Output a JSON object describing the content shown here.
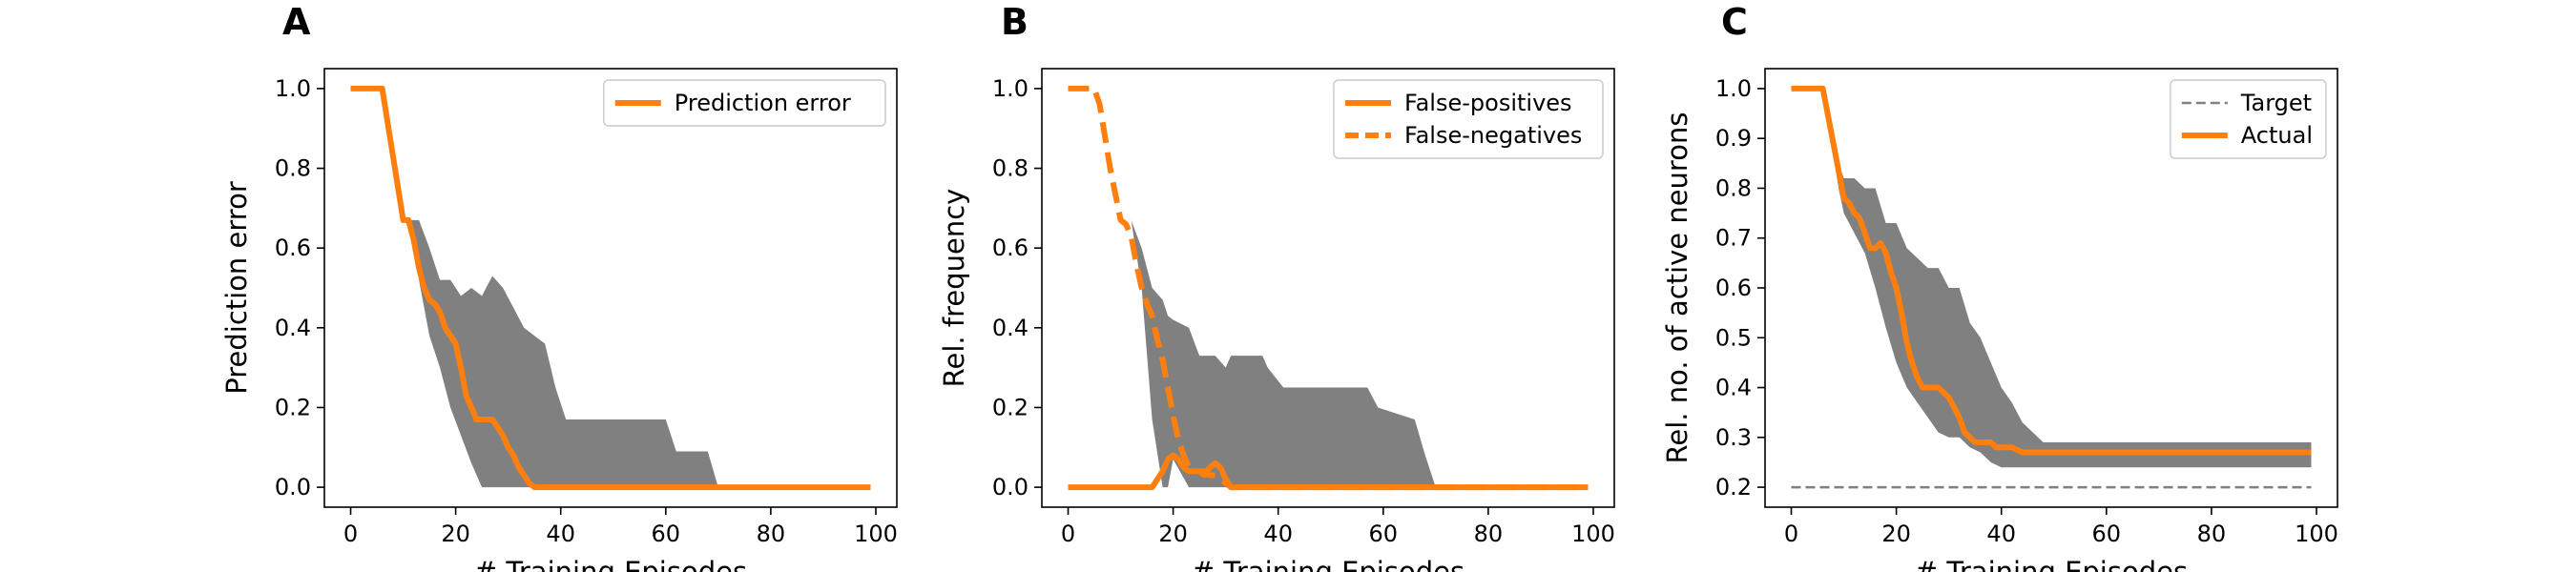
{
  "chart_data": [
    {
      "panel": "A",
      "type": "line",
      "xlabel": "# Training Episodes",
      "ylabel": "Prediction error",
      "xlim": [
        -5,
        104
      ],
      "ylim": [
        -0.05,
        1.05
      ],
      "xticks": [
        0,
        20,
        40,
        60,
        80,
        100
      ],
      "xtick_labels": [
        "0",
        "20",
        "40",
        "60",
        "80",
        "100"
      ],
      "yticks": [
        0.0,
        0.2,
        0.4,
        0.6,
        0.8,
        1.0
      ],
      "ytick_labels": [
        "0.0",
        "0.2",
        "0.4",
        "0.6",
        "0.8",
        "1.0"
      ],
      "grid": false,
      "legend_position": "top-right",
      "band": {
        "x": [
          0,
          6,
          10,
          11,
          13,
          15,
          17,
          19,
          21,
          23,
          25,
          27,
          29,
          31,
          33,
          35,
          37,
          39,
          41,
          43,
          60,
          62,
          66,
          68,
          70,
          99
        ],
        "lower": [
          1.0,
          1.0,
          0.67,
          0.67,
          0.52,
          0.38,
          0.3,
          0.2,
          0.13,
          0.06,
          0.0,
          0.0,
          0.0,
          0.0,
          0.0,
          0.0,
          0.0,
          0.0,
          0.0,
          0.0,
          0.0,
          0.0,
          0.0,
          0.0,
          0.0,
          0.0
        ],
        "upper": [
          1.0,
          1.0,
          0.67,
          0.67,
          0.67,
          0.6,
          0.52,
          0.52,
          0.48,
          0.5,
          0.48,
          0.53,
          0.5,
          0.45,
          0.4,
          0.38,
          0.36,
          0.25,
          0.17,
          0.17,
          0.17,
          0.09,
          0.09,
          0.09,
          0.0,
          0.0
        ]
      },
      "series": [
        {
          "name": "Prediction error",
          "style": "solid",
          "x": [
            0,
            6,
            10,
            11,
            12,
            13,
            14,
            15,
            16,
            17,
            18,
            19,
            20,
            21,
            22,
            23,
            24,
            25,
            26,
            27,
            28,
            29,
            30,
            31,
            32,
            33,
            34,
            35,
            36,
            40,
            60,
            80,
            99
          ],
          "y": [
            1.0,
            1.0,
            0.67,
            0.67,
            0.62,
            0.55,
            0.5,
            0.47,
            0.46,
            0.44,
            0.4,
            0.38,
            0.36,
            0.3,
            0.23,
            0.2,
            0.17,
            0.17,
            0.17,
            0.17,
            0.15,
            0.13,
            0.1,
            0.08,
            0.05,
            0.03,
            0.01,
            0.0,
            0.0,
            0.0,
            0.0,
            0.0,
            0.0
          ]
        }
      ]
    },
    {
      "panel": "B",
      "type": "line",
      "xlabel": "# Training Episodes",
      "ylabel": "Rel. frequency",
      "xlim": [
        -5,
        104
      ],
      "ylim": [
        -0.05,
        1.05
      ],
      "xticks": [
        0,
        20,
        40,
        60,
        80,
        100
      ],
      "xtick_labels": [
        "0",
        "20",
        "40",
        "60",
        "80",
        "100"
      ],
      "yticks": [
        0.0,
        0.2,
        0.4,
        0.6,
        0.8,
        1.0
      ],
      "ytick_labels": [
        "0.0",
        "0.2",
        "0.4",
        "0.6",
        "0.8",
        "1.0"
      ],
      "grid": false,
      "legend_position": "top-right",
      "band": {
        "x": [
          10,
          12,
          14,
          16,
          18,
          19,
          20,
          23,
          25,
          28,
          30,
          31,
          35,
          37,
          38,
          41,
          43,
          57,
          59,
          66,
          68,
          70,
          99
        ],
        "lower": [
          0.67,
          0.67,
          0.5,
          0.17,
          0.0,
          0.0,
          0.07,
          0.0,
          0.0,
          0.0,
          0.0,
          0.0,
          0.0,
          0.0,
          0.0,
          0.0,
          0.0,
          0.0,
          0.0,
          0.0,
          0.0,
          0.0,
          0.0
        ],
        "upper": [
          0.67,
          0.67,
          0.6,
          0.5,
          0.47,
          0.43,
          0.42,
          0.4,
          0.33,
          0.33,
          0.3,
          0.33,
          0.33,
          0.33,
          0.3,
          0.25,
          0.25,
          0.25,
          0.2,
          0.17,
          0.08,
          0.0,
          0.0
        ]
      },
      "series": [
        {
          "name": "False-positives",
          "style": "solid",
          "x": [
            0,
            16,
            17,
            18,
            19,
            20,
            21,
            22,
            23,
            24,
            25,
            26,
            27,
            28,
            29,
            30,
            31,
            40,
            60,
            80,
            99
          ],
          "y": [
            0.0,
            0.0,
            0.02,
            0.04,
            0.07,
            0.08,
            0.07,
            0.05,
            0.04,
            0.04,
            0.04,
            0.03,
            0.05,
            0.06,
            0.05,
            0.02,
            0.0,
            0.0,
            0.0,
            0.0,
            0.0
          ]
        },
        {
          "name": "False-negatives",
          "style": "dashed",
          "x": [
            0,
            5,
            6,
            8,
            10,
            11,
            12,
            13,
            14,
            15,
            16,
            17,
            18,
            19,
            20,
            21,
            22,
            23,
            24,
            25,
            26,
            27,
            28,
            29,
            30,
            31,
            32,
            40,
            60,
            80,
            99
          ],
          "y": [
            1.0,
            1.0,
            0.96,
            0.8,
            0.67,
            0.66,
            0.63,
            0.56,
            0.5,
            0.46,
            0.43,
            0.37,
            0.32,
            0.25,
            0.18,
            0.12,
            0.08,
            0.05,
            0.04,
            0.04,
            0.04,
            0.03,
            0.03,
            0.02,
            0.01,
            0.0,
            0.0,
            0.0,
            0.0,
            0.0,
            0.0
          ]
        }
      ]
    },
    {
      "panel": "C",
      "type": "line",
      "xlabel": "# Training Episodes",
      "ylabel": "Rel. no. of active neurons",
      "xlim": [
        -5,
        104
      ],
      "ylim": [
        0.16,
        1.04
      ],
      "xticks": [
        0,
        20,
        40,
        60,
        80,
        100
      ],
      "xtick_labels": [
        "0",
        "20",
        "40",
        "60",
        "80",
        "100"
      ],
      "yticks": [
        0.2,
        0.3,
        0.4,
        0.5,
        0.6,
        0.7,
        0.8,
        0.9,
        1.0
      ],
      "ytick_labels": [
        "0.2",
        "0.3",
        "0.4",
        "0.5",
        "0.6",
        "0.7",
        "0.8",
        "0.9",
        "1.0"
      ],
      "grid": false,
      "legend_position": "top-right",
      "band": {
        "x": [
          0,
          6,
          9,
          10,
          12,
          14,
          16,
          18,
          20,
          22,
          24,
          26,
          28,
          30,
          32,
          34,
          36,
          38,
          40,
          42,
          44,
          46,
          48,
          50,
          60,
          80,
          99
        ],
        "lower": [
          1.0,
          1.0,
          0.8,
          0.75,
          0.71,
          0.67,
          0.6,
          0.52,
          0.45,
          0.4,
          0.37,
          0.34,
          0.31,
          0.3,
          0.3,
          0.28,
          0.27,
          0.25,
          0.24,
          0.24,
          0.24,
          0.24,
          0.24,
          0.24,
          0.24,
          0.24,
          0.24
        ],
        "upper": [
          1.0,
          1.0,
          0.85,
          0.82,
          0.82,
          0.8,
          0.8,
          0.73,
          0.73,
          0.68,
          0.66,
          0.64,
          0.64,
          0.6,
          0.6,
          0.53,
          0.5,
          0.45,
          0.4,
          0.37,
          0.33,
          0.31,
          0.29,
          0.29,
          0.29,
          0.29,
          0.29
        ]
      },
      "series": [
        {
          "name": "Target",
          "style": "thin-dashed",
          "x": [
            0,
            99
          ],
          "y": [
            0.2,
            0.2
          ]
        },
        {
          "name": "Actual",
          "style": "solid",
          "x": [
            0,
            6,
            10,
            11,
            12,
            13,
            14,
            15,
            16,
            17,
            18,
            19,
            20,
            21,
            22,
            23,
            24,
            25,
            26,
            27,
            28,
            29,
            30,
            31,
            32,
            33,
            34,
            35,
            36,
            37,
            38,
            39,
            40,
            42,
            44,
            46,
            48,
            50,
            60,
            80,
            99
          ],
          "y": [
            1.0,
            1.0,
            0.78,
            0.77,
            0.75,
            0.74,
            0.71,
            0.68,
            0.68,
            0.69,
            0.67,
            0.63,
            0.6,
            0.55,
            0.49,
            0.45,
            0.42,
            0.4,
            0.4,
            0.4,
            0.4,
            0.39,
            0.38,
            0.36,
            0.34,
            0.31,
            0.3,
            0.29,
            0.29,
            0.29,
            0.29,
            0.28,
            0.28,
            0.28,
            0.27,
            0.27,
            0.27,
            0.27,
            0.27,
            0.27,
            0.27
          ]
        }
      ]
    }
  ],
  "colors": {
    "line": "#ff7f0e",
    "band": "#808080",
    "target": "#808080",
    "axis": "#000000"
  }
}
